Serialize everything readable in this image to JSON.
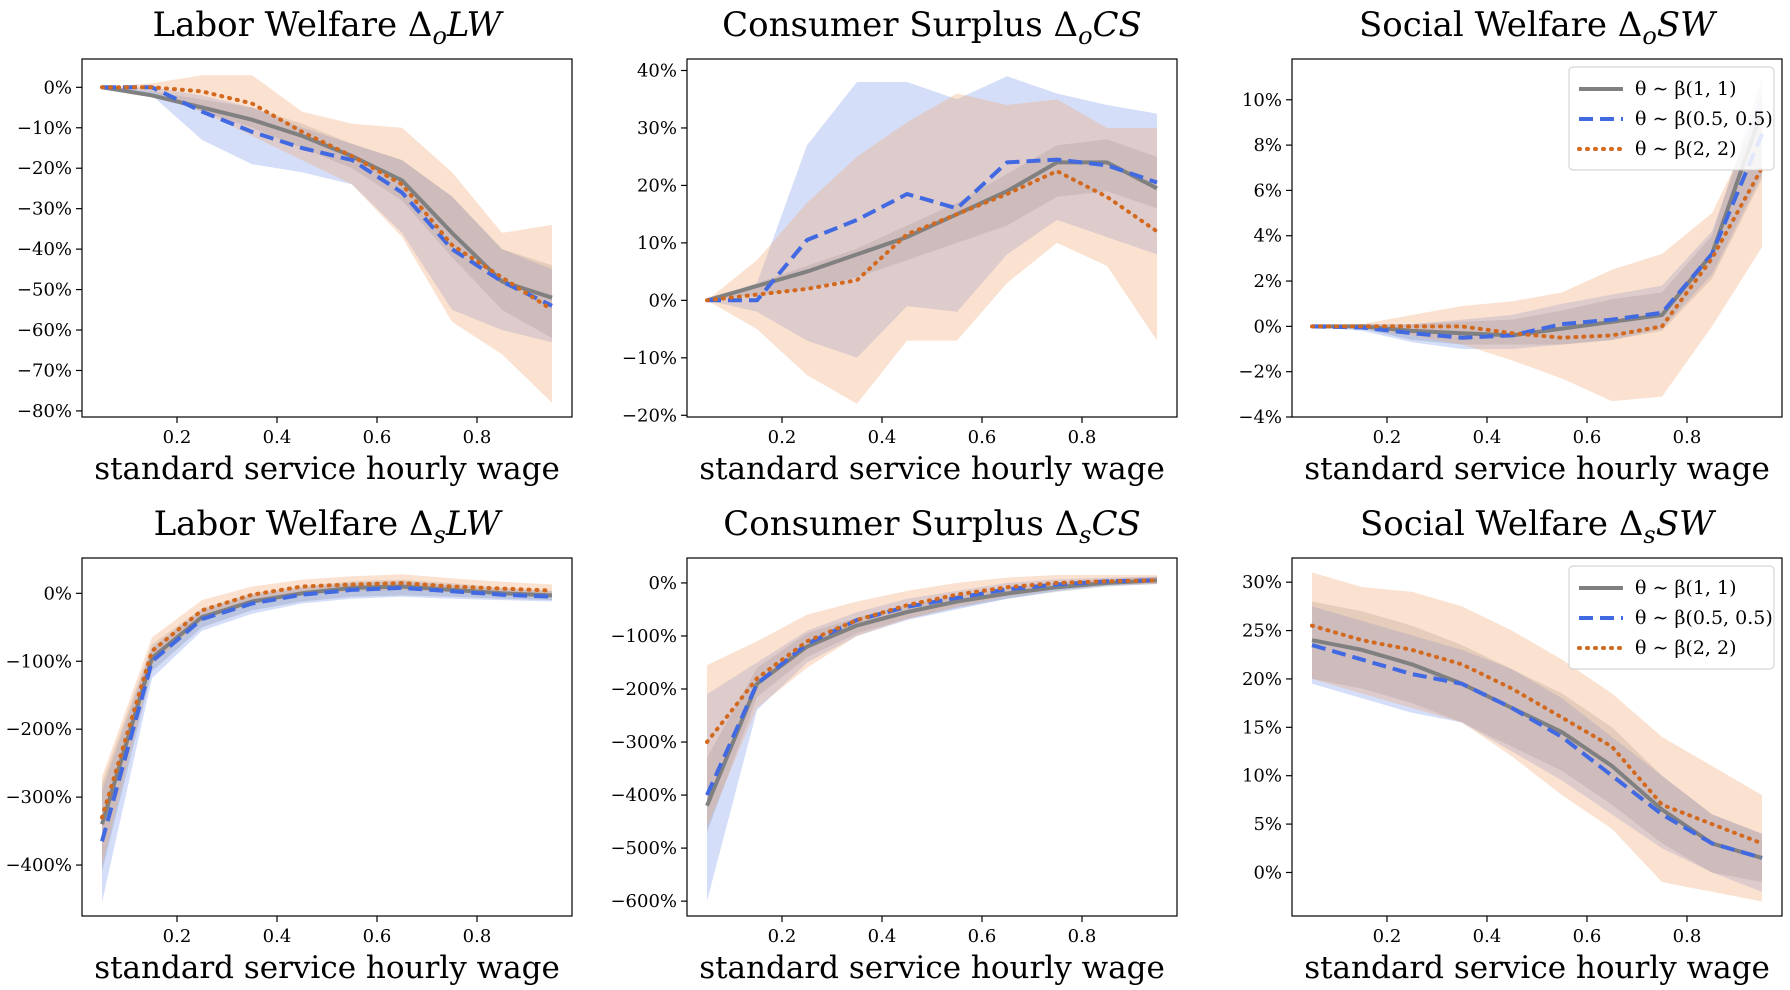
{
  "figure": {
    "x_label": "standard service hourly wage"
  },
  "colors": {
    "uniform": "#808080",
    "arcsine": "#4169e1",
    "beta22": "#d2691e",
    "band_uniform": "#808080",
    "band_arcsine": "#4169e1",
    "band_beta22": "#f0a878"
  },
  "legend_labels": [
    "θ ∼ β(1, 1)",
    "θ ∼ β(0.5, 0.5)",
    "θ ∼ β(2, 2)"
  ],
  "chart_data": [
    {
      "type": "line",
      "title": "Labor Welfare ΔoLW",
      "title_main": "Labor Welfare Δ",
      "title_sub": "o",
      "title_var": "LW",
      "xlabel": "standard service hourly wage",
      "x": [
        0.05,
        0.15,
        0.25,
        0.35,
        0.45,
        0.55,
        0.65,
        0.75,
        0.85,
        0.95
      ],
      "xticks": [
        0.2,
        0.4,
        0.6,
        0.8
      ],
      "xtick_labels": [
        "0.2",
        "0.4",
        "0.6",
        "0.8"
      ],
      "xlim": [
        0.01,
        0.99
      ],
      "ylim": [
        -81.5,
        7
      ],
      "yticks": [
        0,
        -10,
        -20,
        -30,
        -40,
        -50,
        -60,
        -70,
        -80
      ],
      "ytick_labels": [
        "0%",
        "−10%",
        "−20%",
        "−30%",
        "−40%",
        "−50%",
        "−60%",
        "−70%",
        "−80%"
      ],
      "legend": false,
      "series": [
        {
          "name": "θ ∼ β(1, 1)",
          "values": [
            0,
            -2,
            -5,
            -8,
            -12,
            -17,
            -23,
            -36,
            -48,
            -52
          ],
          "lower": [
            0,
            -2,
            -6,
            -10,
            -15,
            -20,
            -28,
            -42,
            -55,
            -62
          ],
          "upper": [
            0,
            -1,
            -3,
            -5,
            -9,
            -14,
            -18,
            -27,
            -40,
            -44
          ]
        },
        {
          "name": "θ ∼ β(0.5, 0.5)",
          "values": [
            0,
            0,
            -6,
            -11,
            -15,
            -18,
            -26,
            -40,
            -48,
            -54
          ],
          "lower": [
            0,
            -2,
            -13,
            -19,
            -21,
            -24,
            -36,
            -55,
            -60,
            -63
          ],
          "upper": [
            0,
            0,
            -2,
            -5,
            -10,
            -14,
            -18,
            -27,
            -40,
            -45
          ]
        },
        {
          "name": "θ ∼ β(2, 2)",
          "values": [
            0,
            0,
            -1,
            -4,
            -11,
            -17,
            -24,
            -39,
            -47,
            -55
          ],
          "lower": [
            0,
            -1,
            -6,
            -12,
            -18,
            -24,
            -37,
            -58,
            -66,
            -78
          ],
          "upper": [
            0,
            1,
            3,
            3,
            -6,
            -9,
            -10,
            -21,
            -36,
            -34
          ]
        }
      ]
    },
    {
      "type": "line",
      "title": "Consumer Surplus ΔoCS",
      "title_main": "Consumer Surplus Δ",
      "title_sub": "o",
      "title_var": "CS",
      "xlabel": "standard service hourly wage",
      "x": [
        0.05,
        0.15,
        0.25,
        0.35,
        0.45,
        0.55,
        0.65,
        0.75,
        0.85,
        0.95
      ],
      "xticks": [
        0.2,
        0.4,
        0.6,
        0.8
      ],
      "xtick_labels": [
        "0.2",
        "0.4",
        "0.6",
        "0.8"
      ],
      "xlim": [
        0.01,
        0.99
      ],
      "ylim": [
        -20.3,
        42
      ],
      "yticks": [
        40,
        30,
        20,
        10,
        0,
        -10,
        -20
      ],
      "ytick_labels": [
        "40%",
        "30%",
        "20%",
        "10%",
        "0%",
        "−10%",
        "−20%"
      ],
      "legend": false,
      "series": [
        {
          "name": "θ ∼ β(1, 1)",
          "values": [
            0,
            2.5,
            5,
            8,
            11,
            15,
            19,
            24,
            24,
            19.5
          ],
          "lower": [
            0,
            1,
            2,
            4,
            7,
            10,
            13,
            18,
            19,
            16
          ],
          "upper": [
            0,
            3,
            6,
            9,
            13,
            17,
            22,
            27,
            28,
            25
          ]
        },
        {
          "name": "θ ∼ β(0.5, 0.5)",
          "values": [
            0,
            0,
            10.5,
            14,
            18.5,
            16,
            24,
            24.5,
            23.5,
            20.5
          ],
          "lower": [
            0,
            -2,
            -7,
            -10,
            -1,
            -2,
            8,
            14,
            11,
            8
          ],
          "upper": [
            0,
            3,
            27,
            38,
            38,
            35,
            39,
            36,
            34,
            32.5
          ]
        },
        {
          "name": "θ ∼ β(2, 2)",
          "values": [
            0,
            1,
            2,
            3.5,
            11.5,
            15,
            18.5,
            22.5,
            18,
            12
          ],
          "lower": [
            0,
            -5,
            -13,
            -18,
            -7,
            -7,
            3,
            10,
            6,
            -7
          ],
          "upper": [
            0,
            7,
            17,
            25,
            31,
            36,
            34,
            35,
            30,
            30
          ]
        }
      ]
    },
    {
      "type": "line",
      "title": "Social Welfare ΔoSW",
      "title_main": "Social Welfare Δ",
      "title_sub": "o",
      "title_var": "SW",
      "xlabel": "standard service hourly wage",
      "x": [
        0.05,
        0.15,
        0.25,
        0.35,
        0.45,
        0.55,
        0.65,
        0.75,
        0.85,
        0.95
      ],
      "xticks": [
        0.2,
        0.4,
        0.6,
        0.8
      ],
      "xtick_labels": [
        "0.2",
        "0.4",
        "0.6",
        "0.8"
      ],
      "xlim": [
        0.01,
        0.99
      ],
      "ylim": [
        -4,
        11.8
      ],
      "yticks": [
        10,
        8,
        6,
        4,
        2,
        0,
        -2,
        -4
      ],
      "ytick_labels": [
        "10%",
        "8%",
        "6%",
        "4%",
        "2%",
        "0%",
        "−2%",
        "−4%"
      ],
      "legend": true,
      "series": [
        {
          "name": "θ ∼ β(1, 1)",
          "values": [
            0,
            0,
            -0.2,
            -0.3,
            -0.4,
            -0.1,
            0.2,
            0.5,
            3.2,
            9.5
          ],
          "lower": [
            0,
            -0.1,
            -0.6,
            -0.8,
            -0.8,
            -0.8,
            -0.6,
            -0.2,
            2.1,
            6.5
          ],
          "upper": [
            0,
            0.1,
            0.1,
            0.2,
            0.3,
            0.7,
            1.2,
            1.5,
            4.0,
            11
          ]
        },
        {
          "name": "θ ∼ β(0.5, 0.5)",
          "values": [
            0,
            -0.05,
            -0.3,
            -0.5,
            -0.4,
            0.1,
            0.3,
            0.6,
            3.2,
            8.5
          ],
          "lower": [
            0,
            -0.2,
            -0.7,
            -1.0,
            -1.0,
            -0.8,
            -0.6,
            -0.1,
            2.3,
            6.7
          ],
          "upper": [
            0,
            0.1,
            0.1,
            0.3,
            0.5,
            1.0,
            1.4,
            1.8,
            4.2,
            10.3
          ]
        },
        {
          "name": "θ ∼ β(2, 2)",
          "values": [
            0,
            0,
            0,
            0,
            -0.3,
            -0.5,
            -0.4,
            0,
            3,
            7
          ],
          "lower": [
            0,
            -0.1,
            -0.4,
            -0.8,
            -1.5,
            -2.3,
            -3.3,
            -3.1,
            0,
            3.5
          ],
          "upper": [
            0,
            0.1,
            0.5,
            0.9,
            1.1,
            1.5,
            2.5,
            3.2,
            5.0,
            9.5
          ]
        }
      ]
    },
    {
      "type": "line",
      "title": "Labor Welfare ΔsLW",
      "title_main": "Labor Welfare Δ",
      "title_sub": "s",
      "title_var": "LW",
      "xlabel": "standard service hourly wage",
      "x": [
        0.05,
        0.15,
        0.25,
        0.35,
        0.45,
        0.55,
        0.65,
        0.75,
        0.85,
        0.95
      ],
      "xticks": [
        0.2,
        0.4,
        0.6,
        0.8
      ],
      "xtick_labels": [
        "0.2",
        "0.4",
        "0.6",
        "0.8"
      ],
      "xlim": [
        0.01,
        0.99
      ],
      "ylim": [
        -475,
        52
      ],
      "yticks": [
        0,
        -100,
        -200,
        -300,
        -400
      ],
      "ytick_labels": [
        "0%",
        "−100%",
        "−200%",
        "−300%",
        "−400%"
      ],
      "legend": false,
      "series": [
        {
          "name": "θ ∼ β(1, 1)",
          "values": [
            -340,
            -95,
            -35,
            -12,
            0,
            8,
            10,
            5,
            0,
            -3
          ],
          "lower": [
            -410,
            -115,
            -50,
            -25,
            -12,
            -5,
            -3,
            -5,
            -8,
            -10
          ],
          "upper": [
            -280,
            -75,
            -22,
            0,
            10,
            18,
            20,
            15,
            8,
            4
          ]
        },
        {
          "name": "θ ∼ β(0.5, 0.5)",
          "values": [
            -365,
            -100,
            -38,
            -15,
            -2,
            5,
            8,
            3,
            -2,
            -5
          ],
          "lower": [
            -455,
            -125,
            -55,
            -30,
            -15,
            -8,
            -5,
            -8,
            -10,
            -12
          ],
          "upper": [
            -290,
            -80,
            -25,
            -3,
            8,
            15,
            18,
            12,
            6,
            3
          ]
        },
        {
          "name": "θ ∼ β(2, 2)",
          "values": [
            -330,
            -85,
            -25,
            -2,
            10,
            13,
            15,
            10,
            7,
            4
          ],
          "lower": [
            -400,
            -105,
            -40,
            -15,
            -2,
            3,
            5,
            2,
            -2,
            -4
          ],
          "upper": [
            -270,
            -65,
            -10,
            10,
            20,
            25,
            28,
            22,
            17,
            13
          ]
        }
      ]
    },
    {
      "type": "line",
      "title": "Consumer Surplus ΔsCS",
      "title_main": "Consumer Surplus Δ",
      "title_sub": "s",
      "title_var": "CS",
      "xlabel": "standard service hourly wage",
      "x": [
        0.05,
        0.15,
        0.25,
        0.35,
        0.45,
        0.55,
        0.65,
        0.75,
        0.85,
        0.95
      ],
      "xticks": [
        0.2,
        0.4,
        0.6,
        0.8
      ],
      "xtick_labels": [
        "0.2",
        "0.4",
        "0.6",
        "0.8"
      ],
      "xlim": [
        0.01,
        0.99
      ],
      "ylim": [
        -628,
        47
      ],
      "yticks": [
        0,
        -100,
        -200,
        -300,
        -400,
        -500,
        -600
      ],
      "ytick_labels": [
        "0%",
        "−100%",
        "−200%",
        "−300%",
        "−400%",
        "−500%",
        "−600%"
      ],
      "legend": false,
      "series": [
        {
          "name": "θ ∼ β(1, 1)",
          "values": [
            -420,
            -190,
            -120,
            -80,
            -55,
            -35,
            -20,
            -8,
            0,
            5
          ],
          "lower": [
            -470,
            -215,
            -140,
            -95,
            -68,
            -47,
            -30,
            -17,
            -7,
            -2
          ],
          "upper": [
            -330,
            -160,
            -95,
            -65,
            -42,
            -25,
            -10,
            0,
            7,
            12
          ]
        },
        {
          "name": "θ ∼ β(0.5, 0.5)",
          "values": [
            -400,
            -190,
            -115,
            -70,
            -45,
            -28,
            -12,
            -3,
            3,
            5
          ],
          "lower": [
            -600,
            -240,
            -150,
            -100,
            -70,
            -50,
            -30,
            -15,
            -5,
            -2
          ],
          "upper": [
            -210,
            -150,
            -90,
            -55,
            -30,
            -15,
            0,
            7,
            10,
            12
          ]
        },
        {
          "name": "θ ∼ β(2, 2)",
          "values": [
            -300,
            -180,
            -110,
            -70,
            -42,
            -22,
            -8,
            0,
            3,
            5
          ],
          "lower": [
            -460,
            -235,
            -160,
            -100,
            -68,
            -45,
            -25,
            -12,
            -3,
            -2
          ],
          "upper": [
            -155,
            -110,
            -60,
            -35,
            -15,
            0,
            10,
            15,
            15,
            15
          ]
        }
      ]
    },
    {
      "type": "line",
      "title": "Social Welfare ΔsSW",
      "title_main": "Social Welfare Δ",
      "title_sub": "s",
      "title_var": "SW",
      "xlabel": "standard service hourly wage",
      "x": [
        0.05,
        0.15,
        0.25,
        0.35,
        0.45,
        0.55,
        0.65,
        0.75,
        0.85,
        0.95
      ],
      "xticks": [
        0.2,
        0.4,
        0.6,
        0.8
      ],
      "xtick_labels": [
        "0.2",
        "0.4",
        "0.6",
        "0.8"
      ],
      "xlim": [
        0.01,
        0.99
      ],
      "ylim": [
        -4.5,
        32.5
      ],
      "yticks": [
        30,
        25,
        20,
        15,
        10,
        5,
        0
      ],
      "ytick_labels": [
        "30%",
        "25%",
        "20%",
        "15%",
        "10%",
        "5%",
        "0%"
      ],
      "legend": true,
      "series": [
        {
          "name": "θ ∼ β(1, 1)",
          "values": [
            24,
            23,
            21.5,
            19.5,
            17,
            14.5,
            11,
            6.5,
            3,
            1.5
          ],
          "lower": [
            20,
            19,
            17.5,
            15.5,
            13,
            10.5,
            7,
            3,
            0,
            -1
          ],
          "upper": [
            28,
            27,
            25.5,
            23.5,
            21,
            18.5,
            15,
            10,
            6,
            4
          ]
        },
        {
          "name": "θ ∼ β(0.5, 0.5)",
          "values": [
            23.5,
            22,
            20.5,
            19.5,
            17,
            14,
            10,
            6,
            3,
            1.5
          ],
          "lower": [
            19.5,
            18,
            16.5,
            15.5,
            12.5,
            9.5,
            6,
            2.5,
            0,
            -2
          ],
          "upper": [
            27.5,
            26,
            24.5,
            23,
            21,
            18,
            14,
            10,
            6,
            4
          ]
        },
        {
          "name": "θ ∼ β(2, 2)",
          "values": [
            25.5,
            24,
            23,
            21.5,
            19,
            16,
            13,
            7,
            5,
            3
          ],
          "lower": [
            20,
            18.5,
            17,
            15.5,
            12,
            8,
            4.5,
            -1,
            -2,
            -3
          ],
          "upper": [
            31,
            29.5,
            29,
            27.5,
            25,
            22,
            18.5,
            14,
            11,
            8
          ]
        }
      ]
    }
  ]
}
